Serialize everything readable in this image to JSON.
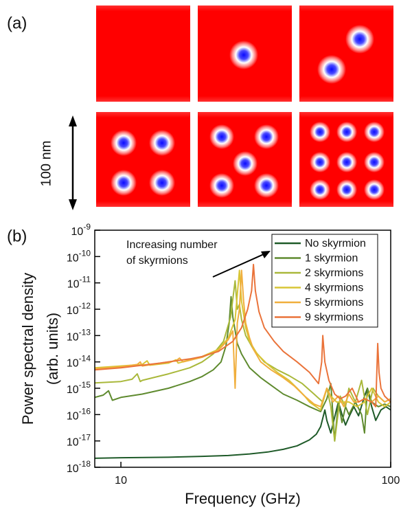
{
  "panel_labels": [
    "(a)",
    "(b)"
  ],
  "scale_bar": "100 nm",
  "chart_data": {
    "type": "line",
    "x_label": "Frequency (GHz)",
    "y_label": [
      "Power spectral density",
      "(arb. units)"
    ],
    "annotation": [
      "Increasing number",
      "of skyrmions"
    ],
    "xscale": "log",
    "yscale": "log",
    "xlim": [
      8,
      100
    ],
    "ylim": [
      1e-18,
      1e-09
    ],
    "xticks": [
      10,
      100
    ],
    "yticks": [
      {
        "value": 1e-09,
        "label": "10-9"
      },
      {
        "value": 1e-10,
        "label": "10-10"
      },
      {
        "value": 1e-11,
        "label": "10-11"
      },
      {
        "value": 1e-12,
        "label": "10-12"
      },
      {
        "value": 1e-13,
        "label": "10-13"
      },
      {
        "value": 1e-14,
        "label": "10-14"
      },
      {
        "value": 1e-15,
        "label": "10-15"
      },
      {
        "value": 1e-16,
        "label": "10-16"
      },
      {
        "value": 1e-17,
        "label": "10-17"
      },
      {
        "value": 1e-18,
        "label": "10-18"
      }
    ],
    "legend": "upper right",
    "series": [
      {
        "name": "No skyrmion",
        "color": "#1e5a28",
        "x": [
          8,
          10,
          15,
          20,
          25,
          30,
          35,
          40,
          45,
          50,
          53,
          55,
          57,
          58,
          60,
          62,
          64,
          66,
          68,
          70,
          73,
          76,
          80,
          82,
          85,
          88,
          92,
          96,
          100
        ],
        "values": [
          2.2e-18,
          2.3e-18,
          2.4e-18,
          2.6e-18,
          2.8e-18,
          3.2e-18,
          3.8e-18,
          4.8e-18,
          6.5e-18,
          1.1e-17,
          1.8e-17,
          3.5e-17,
          1.5e-16,
          6e-17,
          2e-17,
          8e-17,
          3e-16,
          1e-16,
          4e-17,
          8e-17,
          2e-16,
          9e-17,
          5e-16,
          1e-15,
          2e-16,
          6e-17,
          1.5e-16,
          2e-16,
          1.5e-16
        ]
      },
      {
        "name": "1 skyrmion",
        "color": "#5e8a2e",
        "x": [
          8,
          8.6,
          9,
          9.3,
          10,
          12,
          15,
          18,
          20,
          22,
          23.5,
          24.5,
          25.2,
          25.6,
          26,
          27,
          28,
          30,
          33,
          36,
          40,
          45,
          50,
          55,
          58,
          60,
          62,
          64,
          66,
          68,
          70,
          74,
          78,
          80,
          82,
          85,
          90,
          95,
          100
        ],
        "values": [
          4.5e-16,
          5.5e-16,
          8e-16,
          3.5e-16,
          4.5e-16,
          6e-16,
          1e-15,
          1.8e-15,
          2.8e-15,
          5e-15,
          1e-14,
          4e-14,
          3e-13,
          3e-12,
          5e-13,
          5e-14,
          2e-14,
          6e-15,
          2.5e-15,
          1.3e-15,
          6e-16,
          3.5e-16,
          2e-16,
          1.3e-16,
          4e-16,
          1.5e-15,
          1e-17,
          3e-16,
          5e-17,
          2e-16,
          1e-16,
          3e-16,
          1e-16,
          2e-17,
          1e-15,
          3e-16,
          2e-16,
          2.5e-16,
          2e-16
        ]
      },
      {
        "name": "2 skyrmions",
        "color": "#a9b83a",
        "x": [
          8,
          10,
          11,
          11.5,
          11.8,
          12,
          15,
          18,
          20,
          22,
          24,
          25.5,
          26.5,
          27,
          27.5,
          28,
          29,
          31,
          34,
          38,
          42,
          47,
          52,
          56,
          58,
          60,
          62,
          65,
          68,
          70,
          74,
          78,
          82,
          86,
          90,
          95,
          100
        ],
        "values": [
          1.6e-15,
          1.8e-15,
          2.2e-15,
          3.5e-15,
          1.8e-15,
          2e-15,
          3.5e-15,
          6e-15,
          1e-14,
          2e-14,
          6e-14,
          5e-13,
          1.2e-11,
          1e-12,
          1.5e-12,
          4e-13,
          1e-13,
          3e-14,
          1e-14,
          5e-15,
          3e-15,
          1.5e-15,
          6e-16,
          3e-16,
          1e-15,
          2e-16,
          1e-17,
          5e-16,
          2e-16,
          1e-15,
          3e-16,
          2e-15,
          1e-16,
          1e-15,
          5e-16,
          3e-16,
          4e-16
        ]
      },
      {
        "name": "4 skyrmions",
        "color": "#d8c535",
        "x": [
          8,
          10,
          12,
          12.5,
          12.8,
          15,
          16,
          16.3,
          18,
          20,
          23,
          25,
          26.5,
          27.5,
          28,
          29,
          30,
          32,
          35,
          38,
          42,
          45,
          48,
          50,
          55,
          58,
          60,
          63,
          66,
          70,
          75,
          80,
          85,
          90,
          95,
          100
        ],
        "values": [
          6e-15,
          7e-15,
          8e-15,
          1.1e-14,
          7.5e-15,
          9e-15,
          1.2e-14,
          9e-15,
          1.2e-14,
          1.6e-14,
          3e-14,
          8e-14,
          4e-13,
          3e-11,
          2e-12,
          2e-13,
          6e-14,
          2e-14,
          8e-15,
          4e-15,
          2e-15,
          1e-15,
          5e-16,
          3e-16,
          1.5e-16,
          1e-15,
          5e-16,
          3e-16,
          3e-16,
          3e-16,
          2e-16,
          3e-16,
          1e-15,
          3e-16,
          2e-16,
          3e-16
        ]
      },
      {
        "name": "5 skyrmions",
        "color": "#f0ae3c",
        "x": [
          8,
          10,
          11.5,
          11.8,
          12,
          14,
          16,
          16.5,
          17,
          20,
          23,
          25,
          26,
          26.5,
          27,
          27.5,
          28,
          28.5,
          29,
          30,
          31,
          33,
          36,
          40,
          44,
          48,
          52,
          55,
          58,
          61,
          64,
          67,
          70,
          73,
          76,
          80,
          85,
          90,
          95,
          100
        ],
        "values": [
          5.5e-15,
          6.5e-15,
          8e-15,
          1e-14,
          7e-15,
          9e-15,
          1.1e-14,
          1.4e-14,
          1e-14,
          1.5e-14,
          2.8e-14,
          7e-14,
          1.5e-13,
          1e-15,
          3e-13,
          1e-12,
          3e-11,
          2e-12,
          3e-13,
          8e-14,
          3e-14,
          1e-14,
          5e-15,
          2.5e-15,
          1.2e-15,
          5e-16,
          2.5e-16,
          2e-16,
          1e-15,
          3e-16,
          5e-16,
          2e-16,
          6e-16,
          3e-16,
          3e-16,
          4e-16,
          3e-16,
          5e-16,
          3e-16,
          4e-16
        ]
      },
      {
        "name": "9 skyrmions",
        "color": "#ea733a",
        "x": [
          8,
          10,
          12,
          14,
          16,
          18,
          20,
          23,
          26,
          28,
          29.5,
          30.5,
          31,
          31.5,
          32.5,
          34,
          37,
          40,
          45,
          50,
          54,
          55.5,
          56,
          57,
          59,
          62,
          65,
          68,
          72,
          76,
          80,
          85,
          88,
          89.5,
          90.5,
          92,
          95,
          100
        ],
        "values": [
          5e-15,
          6e-15,
          7.5e-15,
          9e-15,
          1.1e-14,
          1.3e-14,
          1.6e-14,
          2.5e-14,
          6e-14,
          2e-13,
          1e-12,
          5e-12,
          5e-11,
          5e-12,
          8e-13,
          2e-13,
          6e-14,
          2.5e-14,
          1e-14,
          4e-15,
          1.5e-15,
          1e-14,
          1e-13,
          1e-14,
          2e-15,
          6e-16,
          4e-16,
          5e-16,
          1e-15,
          3e-16,
          4e-16,
          3e-16,
          2e-16,
          5e-14,
          4e-15,
          1e-15,
          5e-16,
          3e-16
        ]
      }
    ]
  }
}
